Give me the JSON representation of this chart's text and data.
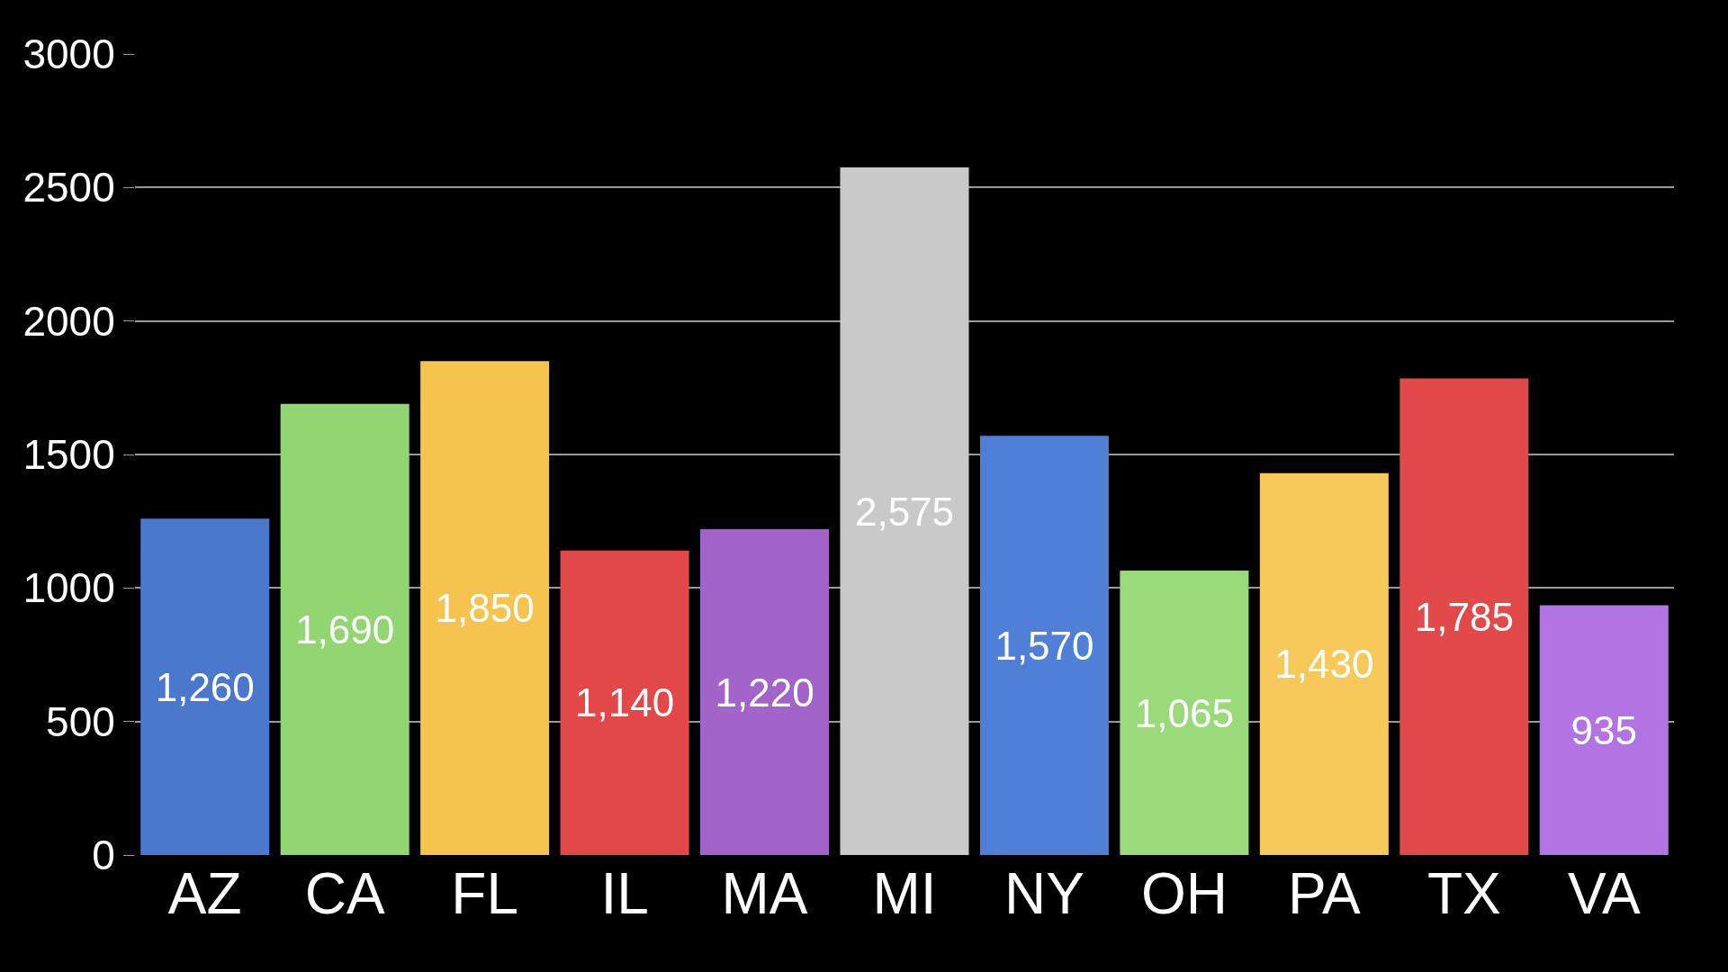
{
  "chart_data": {
    "type": "bar",
    "categories": [
      "AZ",
      "CA",
      "FL",
      "IL",
      "MA",
      "MI",
      "NY",
      "OH",
      "PA",
      "TX",
      "VA"
    ],
    "values": [
      1260,
      1690,
      1850,
      1140,
      1220,
      2575,
      1570,
      1065,
      1430,
      1785,
      935
    ],
    "value_labels": [
      "1,260",
      "1,690",
      "1,850",
      "1,140",
      "1,220",
      "2,575",
      "1,570",
      "1,065",
      "1,430",
      "1,785",
      "935"
    ],
    "colors": [
      "#4a78cc",
      "#92d672",
      "#f5c34e",
      "#e34848",
      "#a264c9",
      "#c9c9c9",
      "#4f7fd6",
      "#9ada7a",
      "#f7c85a",
      "#e24a4a",
      "#b374e3"
    ],
    "ylim": [
      0,
      3000
    ],
    "yticks": [
      0,
      500,
      1000,
      1500,
      2000,
      2500,
      3000
    ],
    "grid": "y"
  }
}
